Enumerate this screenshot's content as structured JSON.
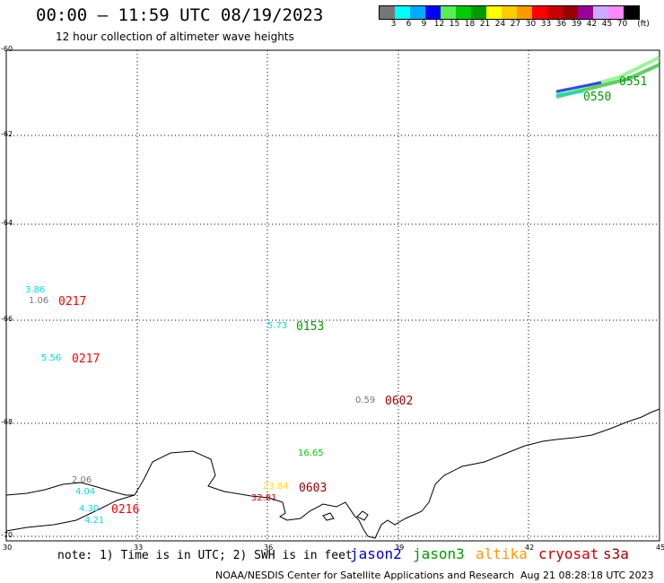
{
  "header": {
    "title": "00:00 — 11:59 UTC 08/19/2023",
    "subtitle": "12 hour collection of altimeter wave heights"
  },
  "legend": {
    "colors": [
      "#777777",
      "#00ffff",
      "#00aaff",
      "#0000ff",
      "#55ee55",
      "#00cc00",
      "#009900",
      "#ffff00",
      "#ffcc00",
      "#ff9900",
      "#ff0000",
      "#cc0000",
      "#990000",
      "#990099",
      "#ccaaff",
      "#ff88ff",
      "#000000"
    ],
    "labels": [
      "3",
      "6",
      "9",
      "12",
      "15",
      "18",
      "21",
      "24",
      "27",
      "30",
      "33",
      "36",
      "39",
      "42",
      "45",
      "70"
    ],
    "unit": "(ft)"
  },
  "axes": {
    "y_ticks": [
      "-60",
      "-62",
      "-64",
      "-66",
      "-68",
      "-70"
    ],
    "x_ticks": [
      "30",
      "33",
      "36",
      "39",
      "42",
      "45"
    ]
  },
  "observations": [
    {
      "text": "3.86",
      "color": "#00dddd",
      "cls": "obs"
    },
    {
      "text": "1.06",
      "color": "#777777",
      "cls": "obs"
    },
    {
      "text": "0217",
      "color": "#ff0000",
      "cls": "obs big"
    },
    {
      "text": "5.73",
      "color": "#00dddd",
      "cls": "obs"
    },
    {
      "text": "0153",
      "color": "#009900",
      "cls": "obs big"
    },
    {
      "text": "5.56",
      "color": "#00dddd",
      "cls": "obs"
    },
    {
      "text": "0217",
      "color": "#ff0000",
      "cls": "obs big"
    },
    {
      "text": "0.59",
      "color": "#777777",
      "cls": "obs"
    },
    {
      "text": "0602",
      "color": "#990000",
      "cls": "obs big"
    },
    {
      "text": "16.65",
      "color": "#00cc00",
      "cls": "obs"
    },
    {
      "text": "2.06",
      "color": "#777777",
      "cls": "obs"
    },
    {
      "text": "4.04",
      "color": "#00dddd",
      "cls": "obs"
    },
    {
      "text": "23.84",
      "color": "#ffdd00",
      "cls": "obs"
    },
    {
      "text": "0603",
      "color": "#990000",
      "cls": "obs big"
    },
    {
      "text": "32.81",
      "color": "#cc0000",
      "cls": "obs"
    },
    {
      "text": "4.30",
      "color": "#00dddd",
      "cls": "obs"
    },
    {
      "text": "0216",
      "color": "#ff0000",
      "cls": "obs big"
    },
    {
      "text": "4.21",
      "color": "#00dddd",
      "cls": "obs"
    },
    {
      "text": "0551",
      "color": "#009900",
      "cls": "obs big"
    },
    {
      "text": "0550",
      "color": "#009900",
      "cls": "obs big"
    }
  ],
  "note": "note: 1) Time is in UTC; 2) SWH is in feet",
  "satellites": [
    {
      "name": "jason2",
      "color": "#0000cc"
    },
    {
      "name": "jason3",
      "color": "#009900"
    },
    {
      "name": "altika",
      "color": "#ff9900"
    },
    {
      "name": "cryosat",
      "color": "#cc0000"
    },
    {
      "name": "s3a",
      "color": "#990000"
    }
  ],
  "footer": {
    "left": "NOAA/NESDIS Center for Satellite Applications and Research",
    "right": "Aug 21 08:28:18 UTC 2023"
  }
}
